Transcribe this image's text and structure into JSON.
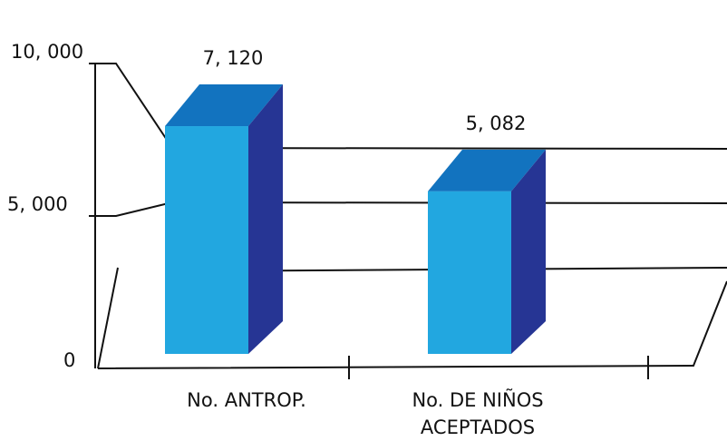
{
  "chart_data": {
    "type": "bar",
    "style": "3d",
    "categories": [
      "No. ANTROP.",
      "No. DE NIÑOS\nACEPTADOS"
    ],
    "values": [
      7120,
      5082
    ],
    "data_labels": [
      "7, 120",
      "5, 082"
    ],
    "y_ticks": [
      {
        "value": 0,
        "label": "0"
      },
      {
        "value": 5000,
        "label": "5, 000"
      },
      {
        "value": 10000,
        "label": "10, 000"
      }
    ],
    "ylim": [
      0,
      10000
    ],
    "grid": true,
    "legend": "none",
    "colors": {
      "front": "#22a7e0",
      "top": "#1273bf",
      "side": "#263594",
      "lines": "#111111"
    }
  }
}
